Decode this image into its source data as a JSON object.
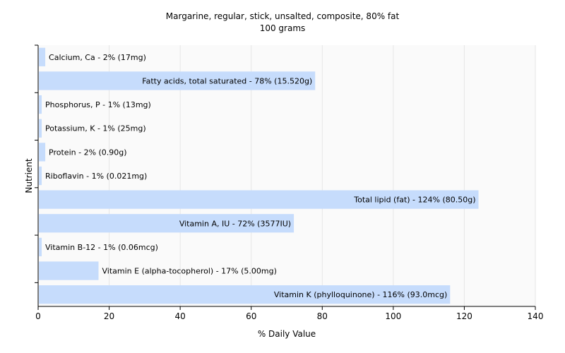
{
  "chart_data": {
    "type": "bar",
    "orientation": "horizontal",
    "title": "Margarine, regular, stick, unsalted, composite, 80% fat",
    "subtitle": "100 grams",
    "xlabel": "% Daily Value",
    "ylabel": "Nutrient",
    "xlim": [
      0,
      140
    ],
    "xticks": [
      0,
      20,
      40,
      60,
      80,
      100,
      120,
      140
    ],
    "grid": true,
    "bar_color": "#c6dcfc",
    "categories": [
      "Calcium, Ca",
      "Fatty acids, total saturated",
      "Phosphorus, P",
      "Potassium, K",
      "Protein",
      "Riboflavin",
      "Total lipid (fat)",
      "Vitamin A, IU",
      "Vitamin B-12",
      "Vitamin E (alpha-tocopherol)",
      "Vitamin K (phylloquinone)"
    ],
    "values": [
      2,
      78,
      1,
      1,
      2,
      1,
      124,
      72,
      1,
      17,
      116
    ],
    "labels": [
      "Calcium, Ca - 2% (17mg)",
      "Fatty acids, total saturated - 78% (15.520g)",
      "Phosphorus, P - 1% (13mg)",
      "Potassium, K - 1% (25mg)",
      "Protein - 2% (0.90g)",
      "Riboflavin - 1% (0.021mg)",
      "Total lipid (fat) - 124% (80.50g)",
      "Vitamin A, IU - 72% (3577IU)",
      "Vitamin B-12 - 1% (0.06mcg)",
      "Vitamin E (alpha-tocopherol) - 17% (5.00mg)",
      "Vitamin K (phylloquinone) - 116% (93.0mcg)"
    ]
  }
}
